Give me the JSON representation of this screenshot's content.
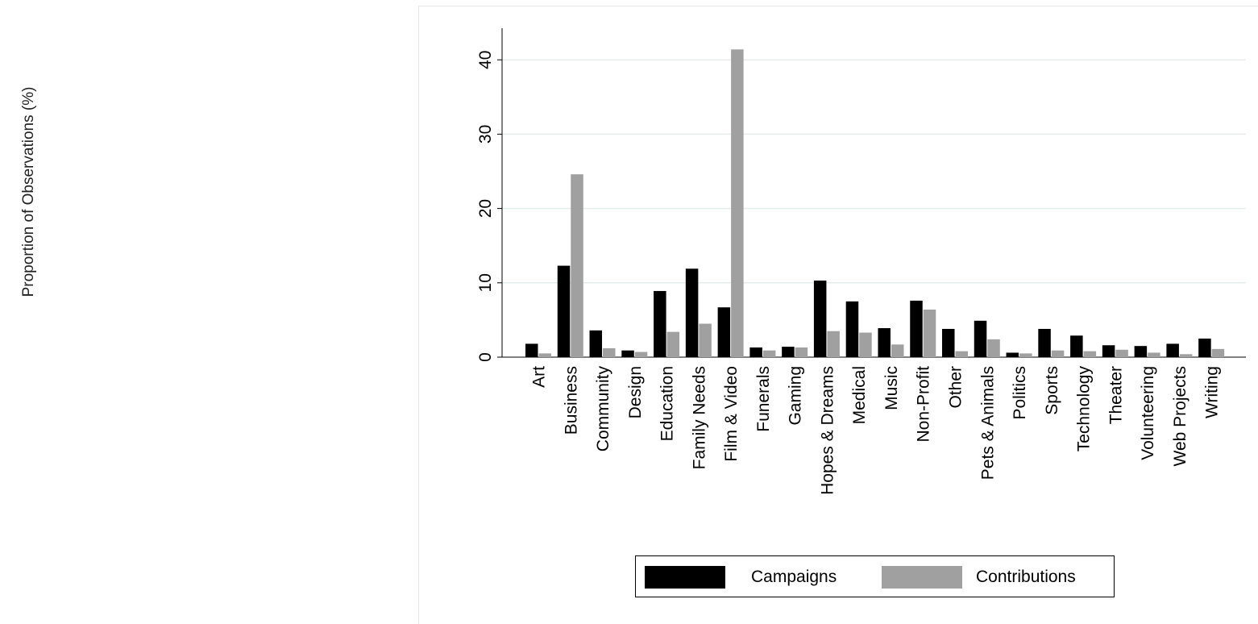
{
  "colors": {
    "campaigns": "#000000",
    "contributions": "#a0a0a0",
    "grid": "#e4ecec",
    "axis": "#000000"
  },
  "chart_data": {
    "type": "bar",
    "xlabel": "",
    "ylabel": "Proportion of Observations (%)",
    "ylim": [
      0,
      44
    ],
    "yticks": [
      0,
      10,
      20,
      30,
      40
    ],
    "grid": true,
    "legend_position": "bottom",
    "categories": [
      "Art",
      "Business",
      "Community",
      "Design",
      "Education",
      "Family Needs",
      "Film & Video",
      "Funerals",
      "Gaming",
      "Hopes & Dreams",
      "Medical",
      "Music",
      "Non-Profit",
      "Other",
      "Pets & Animals",
      "Politics",
      "Sports",
      "Technology",
      "Theater",
      "Volunteering",
      "Web Projects",
      "Writing"
    ],
    "series": [
      {
        "name": "Campaigns",
        "values": [
          1.8,
          12.3,
          3.6,
          0.9,
          8.9,
          11.9,
          6.7,
          1.3,
          1.4,
          10.3,
          7.5,
          3.9,
          7.6,
          3.8,
          4.9,
          0.6,
          3.8,
          2.9,
          1.6,
          1.5,
          1.8,
          2.5
        ]
      },
      {
        "name": "Contributions",
        "values": [
          0.5,
          24.6,
          1.2,
          0.7,
          3.4,
          4.5,
          41.4,
          0.9,
          1.3,
          3.5,
          3.3,
          1.7,
          6.4,
          0.8,
          2.4,
          0.5,
          0.9,
          0.8,
          1.0,
          0.6,
          0.4,
          1.1
        ]
      }
    ]
  }
}
